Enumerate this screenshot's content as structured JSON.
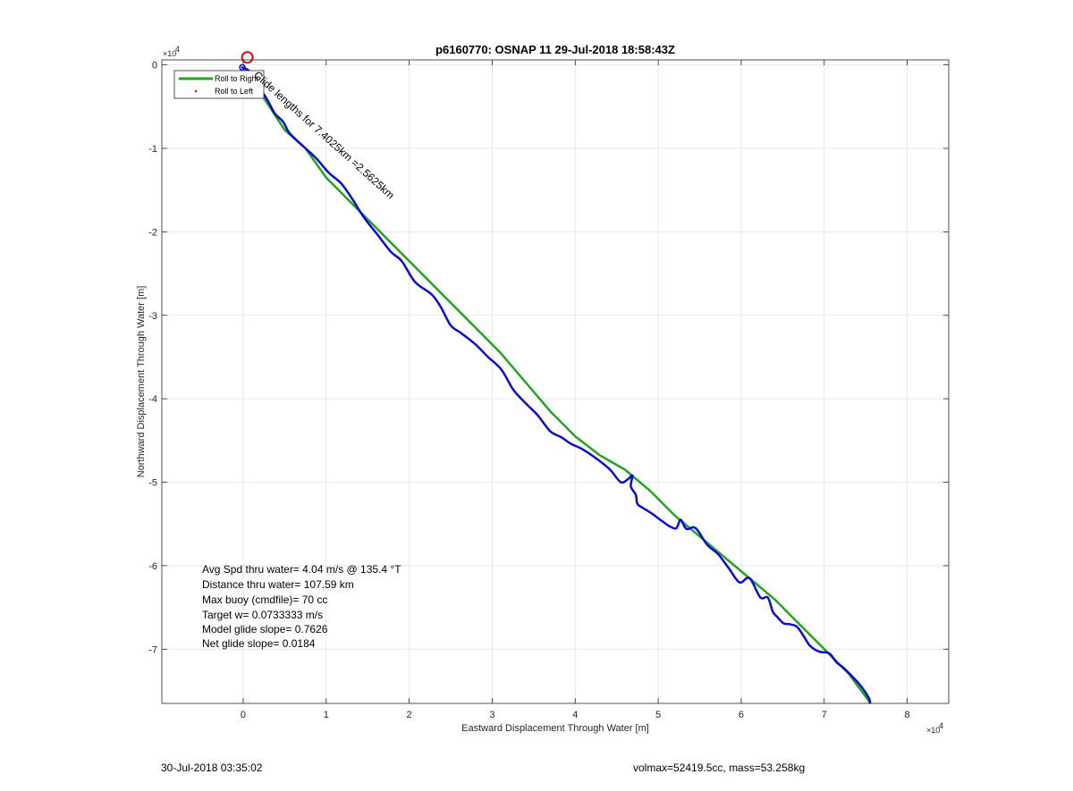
{
  "chart_data": {
    "type": "line",
    "title": "p6160770: OSNAP 11 29-Jul-2018 18:58:43Z",
    "xlabel": "Eastward Displacement Through Water [m]",
    "ylabel": "Northward Displacement Through Water [m]",
    "x_exponent_label": "×10",
    "x_exponent": "4",
    "y_exponent_label": "×10",
    "y_exponent": "4",
    "xlim": [
      -9800,
      85000
    ],
    "ylim": [
      -76500,
      600
    ],
    "grid": true,
    "legend_placement": "top-left",
    "x_ticks": [
      0,
      10000,
      20000,
      30000,
      40000,
      50000,
      60000,
      70000,
      80000
    ],
    "x_tick_labels": [
      "0",
      "1",
      "2",
      "3",
      "4",
      "5",
      "6",
      "7",
      "8"
    ],
    "y_ticks": [
      0,
      -10000,
      -20000,
      -30000,
      -40000,
      -50000,
      -60000,
      -70000
    ],
    "y_tick_labels": [
      "0",
      "-1",
      "-2",
      "-3",
      "-4",
      "-5",
      "-6",
      "-7"
    ],
    "colors": {
      "green": "#22a322",
      "blue": "#0a0ad0",
      "red": "#d01010"
    },
    "series": [
      {
        "name": "Roll to Right",
        "color": "#22a322",
        "x": [
          300,
          2500,
          5000,
          7500,
          10000,
          13000,
          16000,
          19000,
          22000,
          25000,
          28000,
          31000,
          34000,
          37000,
          40000,
          43000,
          46000,
          49000,
          52000,
          55000,
          58000,
          61000,
          64000,
          67000,
          70000,
          73000,
          75600
        ],
        "y": [
          -500,
          -4000,
          -7800,
          -10000,
          -13500,
          -16500,
          -19500,
          -22500,
          -25500,
          -28500,
          -31500,
          -34500,
          -38000,
          -41500,
          -44500,
          -46800,
          -48500,
          -51000,
          -54000,
          -56500,
          -59000,
          -61500,
          -64000,
          -67000,
          -70000,
          -73000,
          -76500
        ]
      },
      {
        "name": "Roll to Left",
        "color": "#d01010",
        "x": [],
        "y": []
      },
      {
        "name": "",
        "color": "#0a0ad0",
        "x": [
          -100,
          800,
          1800,
          2800,
          3800,
          4800,
          5600,
          7300,
          8800,
          10300,
          11800,
          13100,
          14500,
          16300,
          17800,
          19100,
          20700,
          22700,
          23800,
          25000,
          26200,
          28000,
          29500,
          31100,
          32600,
          34200,
          35500,
          37000,
          38300,
          39500,
          40800,
          42600,
          44200,
          45500,
          46400,
          46900,
          46700,
          47300,
          47500,
          48200,
          49300,
          50400,
          51400,
          52200,
          52700,
          53400,
          54500,
          55900,
          57200,
          58500,
          59800,
          61000,
          62300,
          63200,
          63800,
          64400,
          65100,
          65800,
          66700,
          67500,
          68300,
          69400,
          70600,
          71500,
          72400,
          73400,
          74400,
          75400,
          75500
        ],
        "y": [
          -300,
          -800,
          -2500,
          -4000,
          -5800,
          -6800,
          -8200,
          -9800,
          -11200,
          -12900,
          -14200,
          -16000,
          -18200,
          -20500,
          -22400,
          -23500,
          -26000,
          -27500,
          -29000,
          -31200,
          -32100,
          -33500,
          -35000,
          -36500,
          -39000,
          -40700,
          -42000,
          -43900,
          -44600,
          -45400,
          -46000,
          -47200,
          -48500,
          -50000,
          -49600,
          -49200,
          -50500,
          -51500,
          -52600,
          -53100,
          -53800,
          -54600,
          -55300,
          -55500,
          -54500,
          -55600,
          -55500,
          -57500,
          -58600,
          -60300,
          -62000,
          -61500,
          -63800,
          -63800,
          -65500,
          -66200,
          -66900,
          -67000,
          -67300,
          -68400,
          -69600,
          -70300,
          -70500,
          -71600,
          -72300,
          -73300,
          -74400,
          -75900,
          -76400
        ]
      }
    ],
    "start_marker": {
      "x": 500,
      "y": 900,
      "color": "#d01010"
    },
    "annotation": "Glide lengths for 7.4025km =2.5625km",
    "stats": [
      "Avg Spd thru water=  4.04 m/s @ 135.4 °T",
      "Distance thru water= 107.59 km",
      "Max buoy (cmdfile)= 70 cc",
      "Target w= 0.0733333 m/s",
      "Model glide slope= 0.7626",
      "Net glide slope= 0.0184"
    ],
    "footer_left": "30-Jul-2018 03:35:02",
    "footer_right": "volmax=52419.5cc, mass=53.258kg"
  }
}
